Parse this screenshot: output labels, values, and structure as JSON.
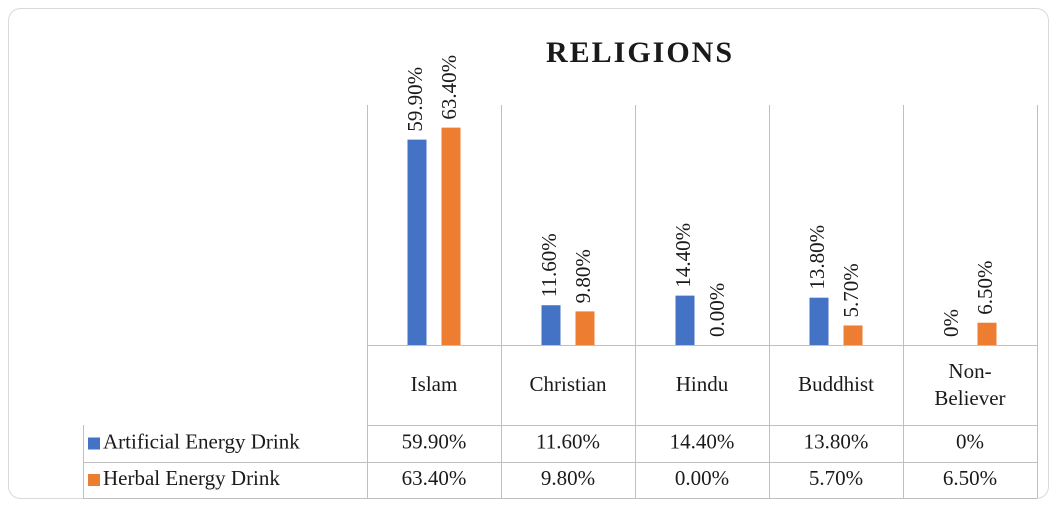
{
  "chart_data": {
    "type": "bar",
    "title": "RELIGIONS",
    "categories": [
      "Islam",
      "Christian",
      "Hindu",
      "Buddhist",
      "Non-Believer"
    ],
    "series": [
      {
        "name": "Artificial Energy Drink",
        "color": "#4472c4",
        "values": [
          59.9,
          11.6,
          14.4,
          13.8,
          0
        ],
        "value_labels": [
          "59.90%",
          "11.60%",
          "14.40%",
          "13.80%",
          "0%"
        ]
      },
      {
        "name": "Herbal Energy Drink",
        "color": "#ed7d31",
        "values": [
          63.4,
          9.8,
          0.0,
          5.7,
          6.5
        ],
        "value_labels": [
          "63.40%",
          "9.80%",
          "0.00%",
          "5.70%",
          "6.50%"
        ]
      }
    ],
    "ylim": [
      0,
      70
    ]
  }
}
